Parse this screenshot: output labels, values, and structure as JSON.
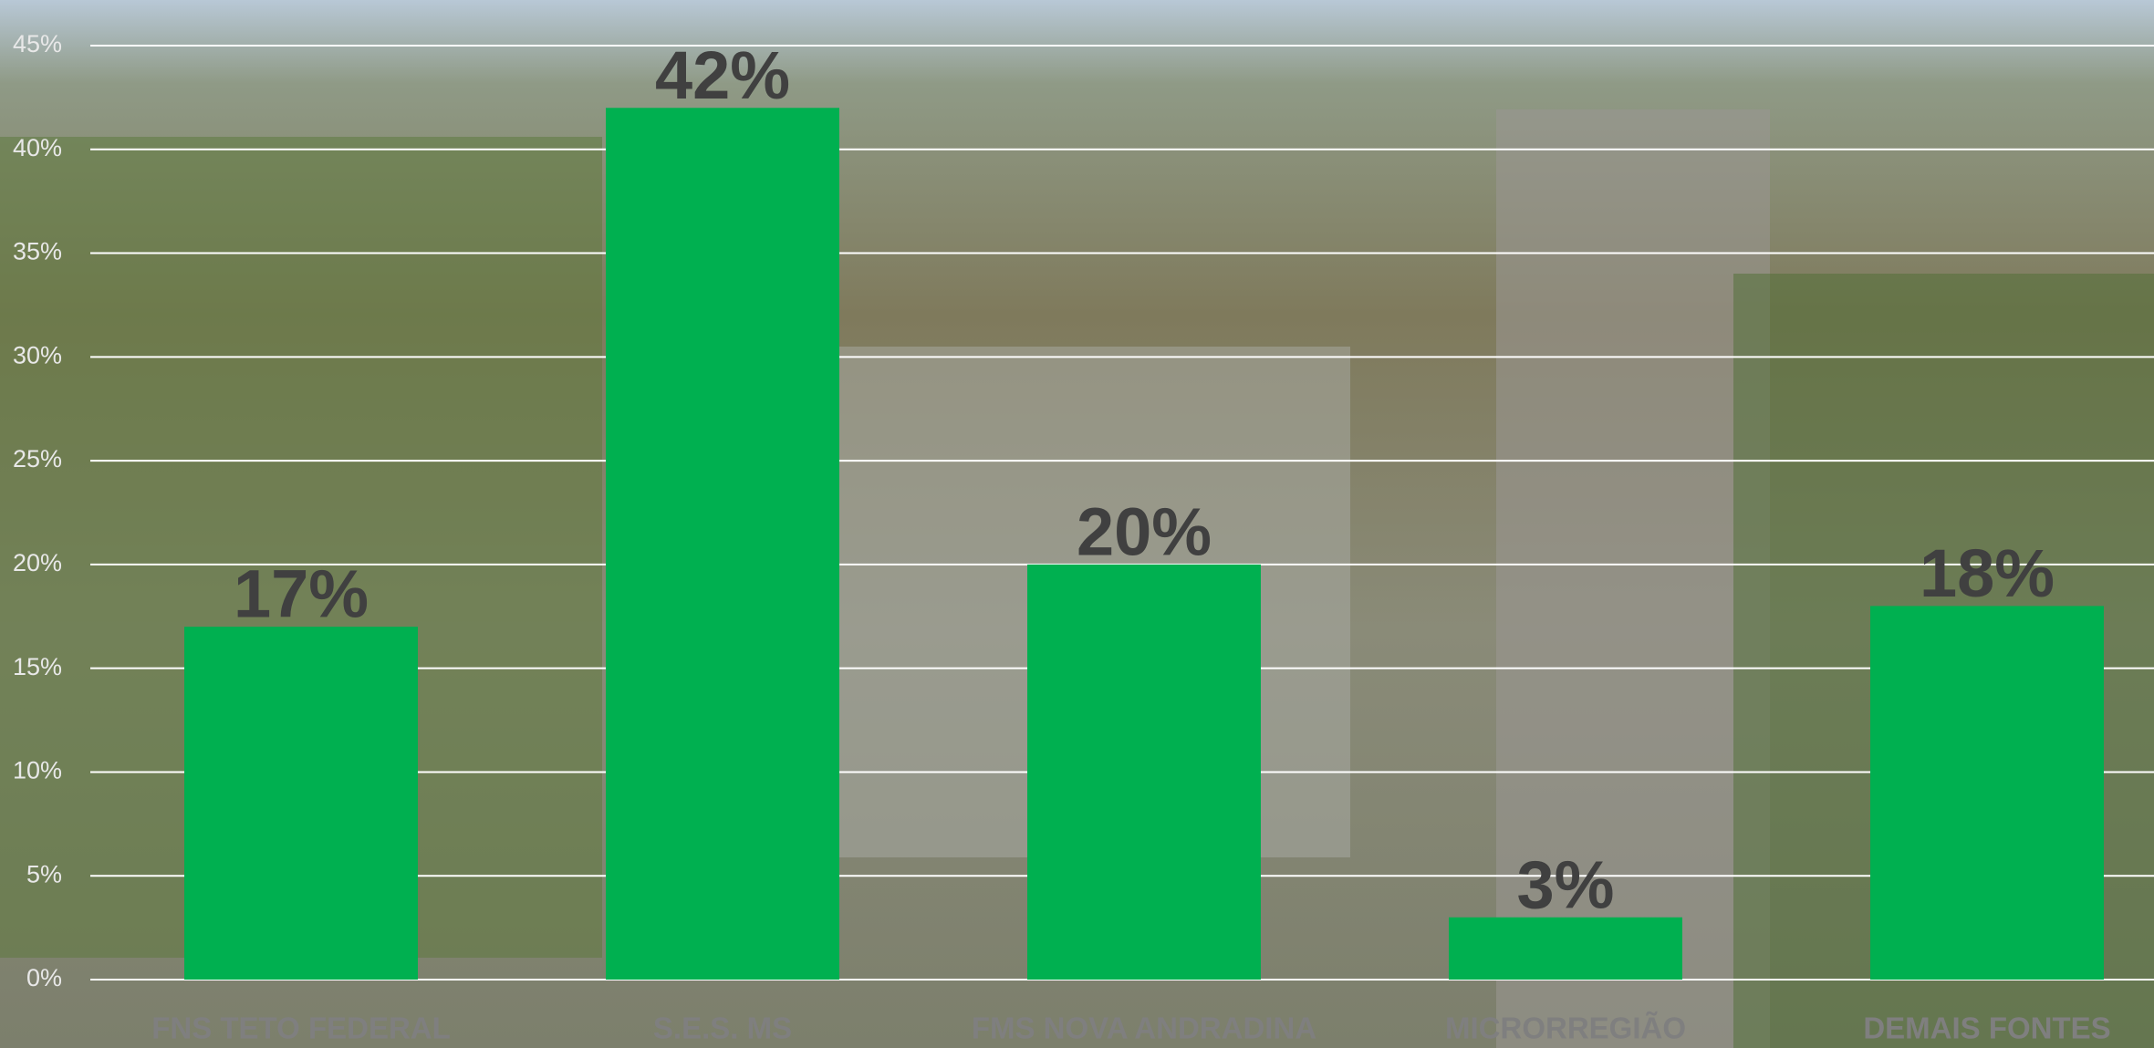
{
  "chart_data": {
    "type": "bar",
    "categories": [
      "FNS TETO FEDERAL",
      "S.E.S. MS",
      "FMS NOVA ANDRADINA",
      "MICRORREGIÃO",
      "DEMAIS FONTES"
    ],
    "values": [
      17,
      42,
      20,
      3,
      18
    ],
    "value_labels": [
      "17%",
      "42%",
      "20%",
      "3%",
      "18%"
    ],
    "color": "#00b050",
    "ylim": [
      0,
      45
    ],
    "yticks": [
      {
        "value": 0,
        "label": "0%"
      },
      {
        "value": 5,
        "label": "5%"
      },
      {
        "value": 10,
        "label": "10%"
      },
      {
        "value": 15,
        "label": "15%"
      },
      {
        "value": 20,
        "label": "20%"
      },
      {
        "value": 25,
        "label": "25%"
      },
      {
        "value": 30,
        "label": "30%"
      },
      {
        "value": 35,
        "label": "35%"
      },
      {
        "value": 40,
        "label": "40%"
      },
      {
        "value": 45,
        "label": "45%"
      }
    ],
    "grid": true
  }
}
